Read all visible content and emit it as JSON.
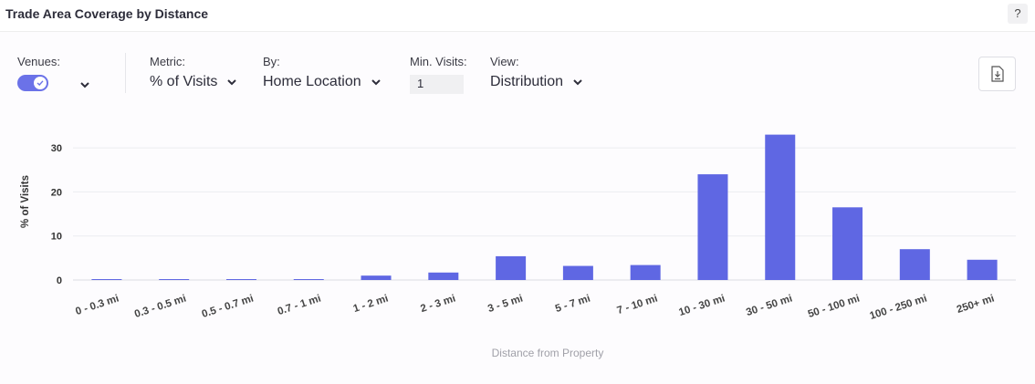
{
  "header": {
    "title": "Trade Area Coverage by Distance",
    "help_label": "?"
  },
  "controls": {
    "venues_label": "Venues:",
    "metric_label": "Metric:",
    "metric_value": "% of Visits",
    "by_label": "By:",
    "by_value": "Home Location",
    "min_visits_label": "Min. Visits:",
    "min_visits_value": "1",
    "view_label": "View:",
    "view_value": "Distribution"
  },
  "colors": {
    "bar": "#5f67e3",
    "accent": "#6b72e8"
  },
  "chart_data": {
    "type": "bar",
    "title": "",
    "xlabel": "Distance from Property",
    "ylabel": "% of Visits",
    "ylim": [
      0,
      33
    ],
    "yticks": [
      0,
      10,
      20,
      30
    ],
    "grid": true,
    "categories": [
      "0 - 0.3 mi",
      "0.3 - 0.5 mi",
      "0.5 - 0.7 mi",
      "0.7 - 1 mi",
      "1 - 2 mi",
      "2 - 3 mi",
      "3 - 5 mi",
      "5 - 7 mi",
      "7 - 10 mi",
      "10 - 30 mi",
      "30 - 50 mi",
      "50 - 100 mi",
      "100 - 250 mi",
      "250+ mi"
    ],
    "values": [
      0.1,
      0.1,
      0.1,
      0.2,
      1.0,
      1.7,
      5.4,
      3.2,
      3.4,
      24.0,
      33.0,
      16.5,
      7.0,
      4.6
    ]
  }
}
